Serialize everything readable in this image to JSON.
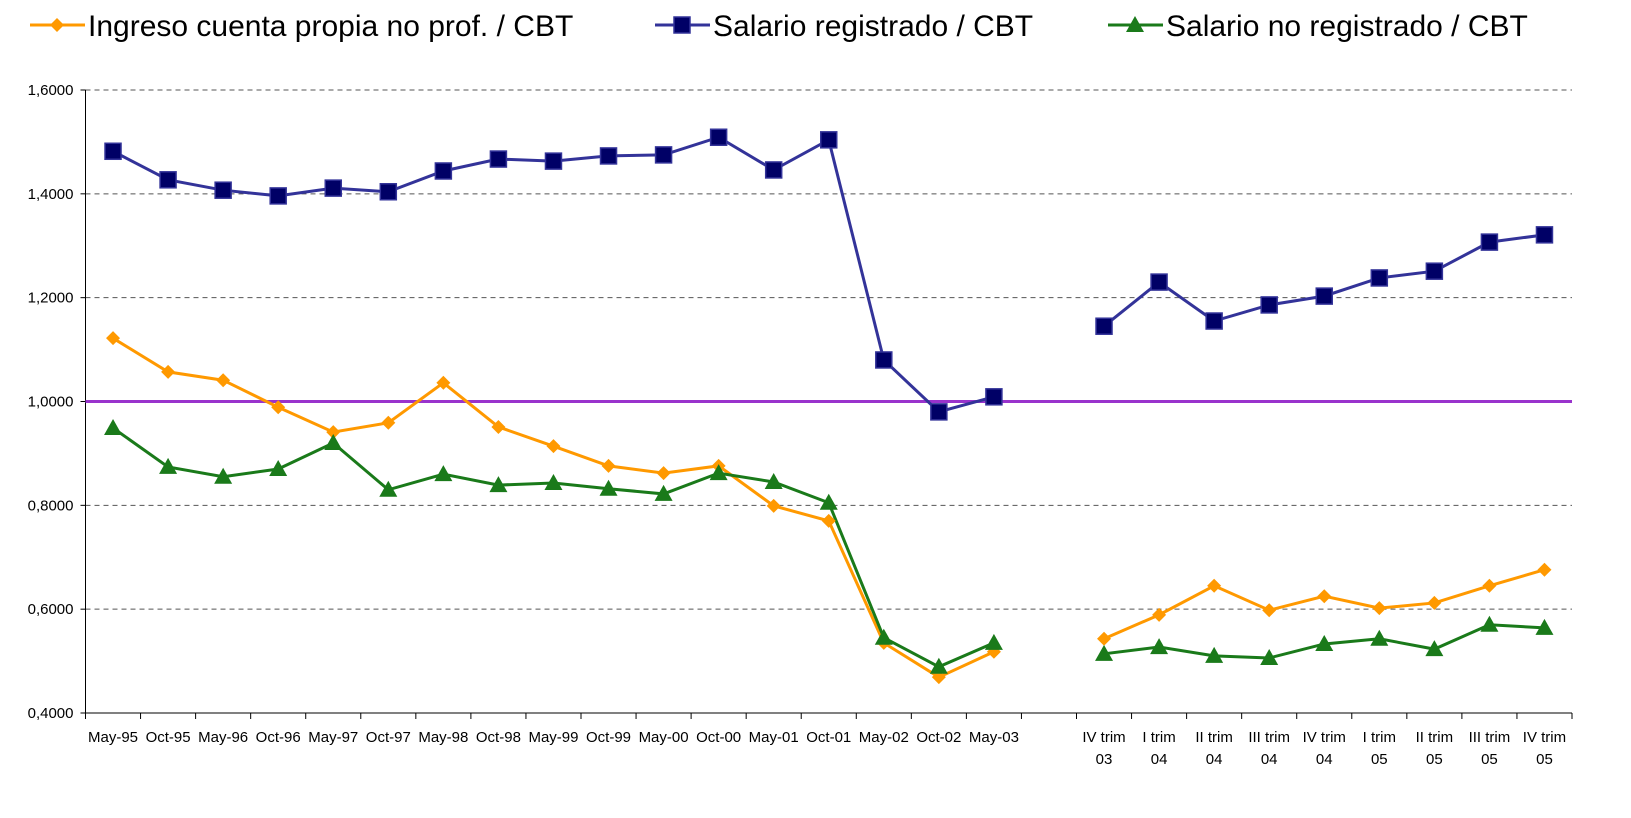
{
  "chart_data": {
    "type": "line",
    "categories": [
      "May-95",
      "Oct-95",
      "May-96",
      "Oct-96",
      "May-97",
      "Oct-97",
      "May-98",
      "Oct-98",
      "May-99",
      "Oct-99",
      "May-00",
      "Oct-00",
      "May-01",
      "Oct-01",
      "May-02",
      "Oct-02",
      "May-03",
      null,
      "IV trim 03",
      "I trim 04",
      "II trim 04",
      "III trim 04",
      "IV trim 04",
      "I trim 05",
      "II trim 05",
      "III trim 05",
      "IV trim 05"
    ],
    "series": [
      {
        "name": "Ingreso cuenta propia no prof. / CBT",
        "color": "#ff9900",
        "marker": "diamond",
        "values": [
          1.122,
          1.057,
          1.041,
          0.989,
          0.941,
          0.959,
          1.036,
          0.951,
          0.914,
          0.876,
          0.862,
          0.876,
          0.799,
          0.77,
          0.535,
          0.469,
          0.518,
          null,
          0.543,
          0.589,
          0.645,
          0.598,
          0.625,
          0.602,
          0.612,
          0.645,
          0.676
        ]
      },
      {
        "name": "Salario registrado / CBT",
        "color": "#333399",
        "marker": "square",
        "values": [
          1.482,
          1.427,
          1.407,
          1.396,
          1.411,
          1.404,
          1.444,
          1.467,
          1.463,
          1.473,
          1.475,
          1.509,
          1.446,
          1.504,
          1.08,
          0.98,
          1.009,
          null,
          1.145,
          1.23,
          1.155,
          1.186,
          1.203,
          1.238,
          1.251,
          1.307,
          1.321
        ]
      },
      {
        "name": "Salario no registrado / CBT",
        "color": "#1a7a1a",
        "marker": "triangle",
        "values": [
          0.949,
          0.874,
          0.855,
          0.87,
          0.92,
          0.83,
          0.86,
          0.839,
          0.843,
          0.832,
          0.822,
          0.862,
          0.845,
          0.805,
          0.545,
          0.489,
          0.535,
          null,
          0.514,
          0.527,
          0.51,
          0.506,
          0.533,
          0.543,
          0.523,
          0.57,
          0.564
        ]
      }
    ],
    "ylim": [
      0.4,
      1.6
    ],
    "yticks": [
      {
        "value": 0.4,
        "label": "0,4000"
      },
      {
        "value": 0.6,
        "label": "0,6000"
      },
      {
        "value": 0.8,
        "label": "0,8000"
      },
      {
        "value": 1.0,
        "label": "1,0000"
      },
      {
        "value": 1.2,
        "label": "1,2000"
      },
      {
        "value": 1.4,
        "label": "1,4000"
      },
      {
        "value": 1.6,
        "label": "1,6000"
      }
    ],
    "grid": true,
    "reference_line": {
      "value": 1.0,
      "color": "#9933cc"
    },
    "legend": "top"
  }
}
